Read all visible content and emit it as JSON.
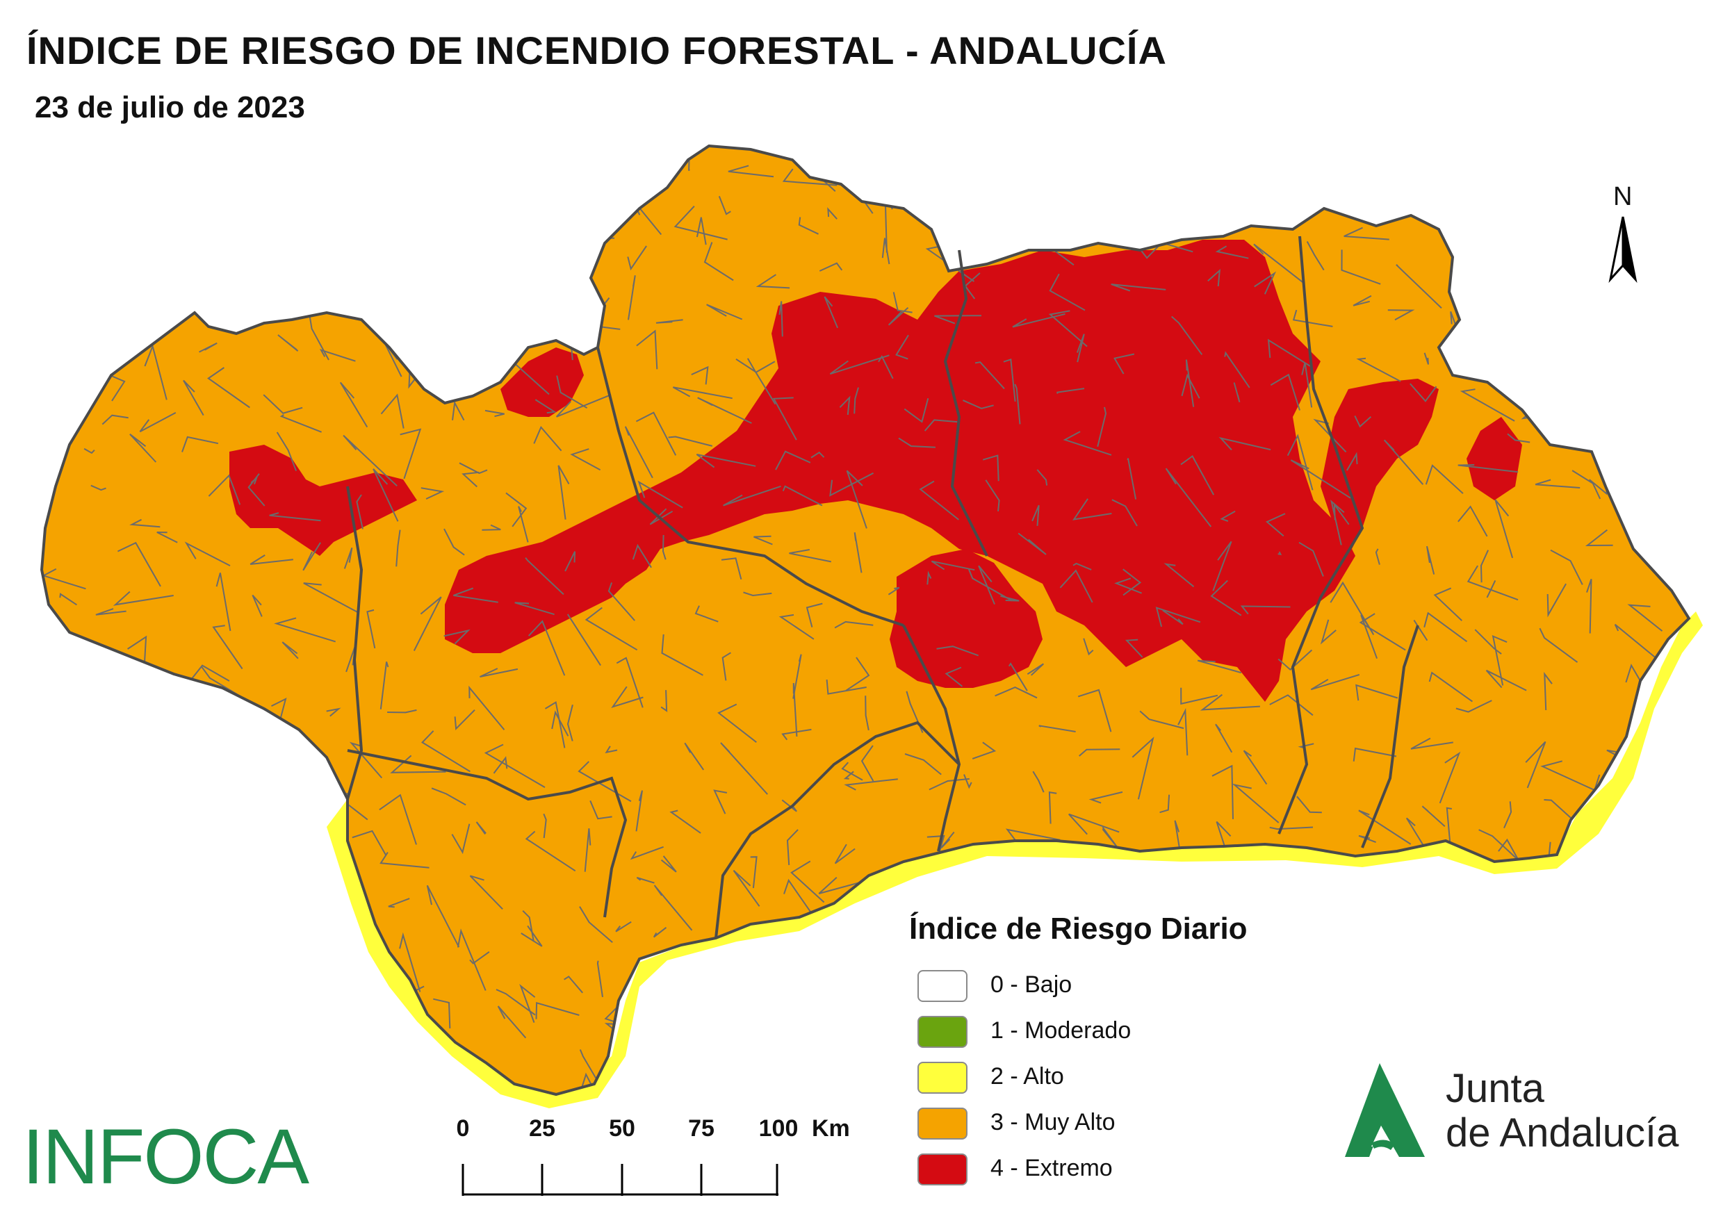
{
  "header": {
    "title": "ÍNDICE DE RIESGO DE INCENDIO FORESTAL - ANDALUCÍA",
    "date": "23 de julio de 2023"
  },
  "north_arrow": {
    "label": "N"
  },
  "legend": {
    "title": "Índice de Riesgo Diario",
    "items": [
      {
        "label": "0 - Bajo",
        "color": "#ffffff"
      },
      {
        "label": "1 - Moderado",
        "color": "#6aa40f"
      },
      {
        "label": "2 - Alto",
        "color": "#ffff3c"
      },
      {
        "label": "3 - Muy Alto",
        "color": "#f5a300"
      },
      {
        "label": "4 - Extremo",
        "color": "#d40b12"
      }
    ]
  },
  "map": {
    "region": "Andalucía",
    "colors": {
      "muy_alto": "#f5a300",
      "extremo": "#d40b12",
      "alto": "#ffff3c",
      "boundary": "#5a5a5a"
    }
  },
  "scale_bar": {
    "ticks": [
      "0",
      "25",
      "50",
      "75",
      "100"
    ],
    "unit": "Km"
  },
  "logos": {
    "infoca": "INFOCA",
    "junta_line1": "Junta",
    "junta_line2": "de Andalucía",
    "junta_color": "#1f8a4c"
  }
}
